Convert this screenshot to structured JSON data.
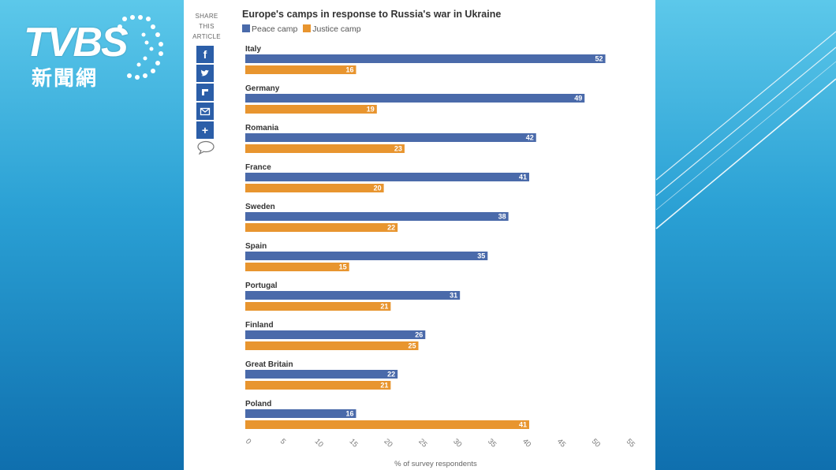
{
  "logo": {
    "main": "TVBS",
    "sub": "新聞網"
  },
  "share": {
    "label_lines": [
      "SHARE",
      "THIS",
      "ARTICLE"
    ],
    "buttons": [
      "facebook-icon",
      "twitter-icon",
      "flipboard-icon",
      "email-icon",
      "plus-icon"
    ]
  },
  "colors": {
    "peace": "#4a6aaa",
    "justice": "#e8952f"
  },
  "chart_data": {
    "type": "bar",
    "orientation": "horizontal",
    "title": "Europe's camps in response to Russia's war in Ukraine",
    "xlabel": "% of survey respondents",
    "xlim": [
      0,
      55
    ],
    "xticks": [
      0,
      5,
      10,
      15,
      20,
      25,
      30,
      35,
      40,
      45,
      50,
      55
    ],
    "legend": "top-left",
    "grid": false,
    "categories": [
      "Italy",
      "Germany",
      "Romania",
      "France",
      "Sweden",
      "Spain",
      "Portugal",
      "Finland",
      "Great Britain",
      "Poland"
    ],
    "series": [
      {
        "name": "Peace camp",
        "values": [
          52,
          49,
          42,
          41,
          38,
          35,
          31,
          26,
          22,
          16
        ]
      },
      {
        "name": "Justice camp",
        "values": [
          16,
          19,
          23,
          20,
          22,
          15,
          21,
          25,
          21,
          41
        ]
      }
    ]
  }
}
